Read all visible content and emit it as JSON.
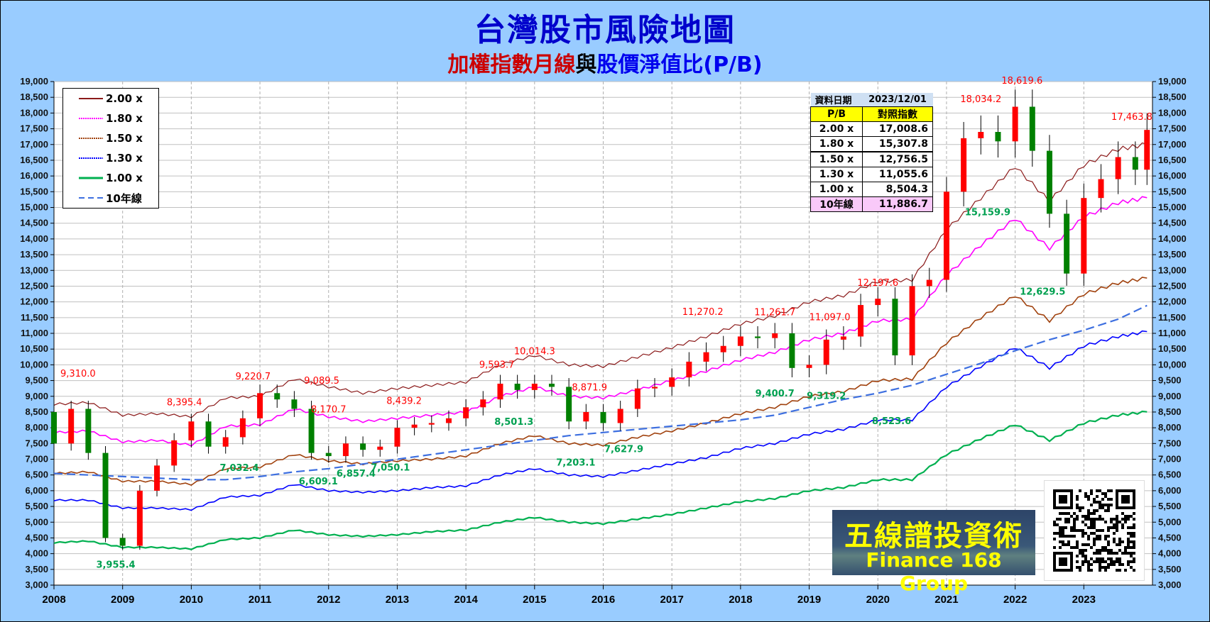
{
  "header": {
    "title": "台灣股市風險地圖",
    "subtitle_red": "加權指數月線",
    "subtitle_black": "與",
    "subtitle_blue": "股價淨值比(P/B)"
  },
  "legend": {
    "items": [
      {
        "label": "2.00 x",
        "color": "#8b1a1a",
        "style": "solid"
      },
      {
        "label": "1.80 x",
        "color": "#ff00ff",
        "style": "dotted"
      },
      {
        "label": "1.50 x",
        "color": "#a0410d",
        "style": "dotted"
      },
      {
        "label": "1.30 x",
        "color": "#0000ff",
        "style": "dotted"
      },
      {
        "label": "1.00 x",
        "color": "#00b050",
        "style": "solid"
      },
      {
        "label": "10年線",
        "color": "#3d6fe0",
        "style": "dashed"
      }
    ]
  },
  "info_table": {
    "date_label": "資料日期",
    "date_value": "2023/12/01",
    "col_pb": "P/B",
    "col_index": "對照指數",
    "rows": [
      {
        "pb": "2.00 x",
        "value": "17,008.6"
      },
      {
        "pb": "1.80 x",
        "value": "15,307.8"
      },
      {
        "pb": "1.50 x",
        "value": "12,756.5"
      },
      {
        "pb": "1.30 x",
        "value": "11,055.6"
      },
      {
        "pb": "1.00 x",
        "value": "8,504.3"
      },
      {
        "pb": "10年線",
        "value": "11,886.7"
      }
    ]
  },
  "brand": {
    "name_cn": "五線譜投資術",
    "name_en": "Finance 168 Group"
  },
  "chart_data": {
    "type": "line",
    "title": "台灣股市風險地圖",
    "subtitle": "加權指數月線與股價淨值比(P/B)",
    "xlabel": "",
    "ylabel": "",
    "ylim": [
      3000,
      19000
    ],
    "y_ticks": [
      3000,
      3500,
      4000,
      4500,
      5000,
      5500,
      6000,
      6500,
      7000,
      7500,
      8000,
      8500,
      9000,
      9500,
      10000,
      10500,
      11000,
      11500,
      12000,
      12500,
      13000,
      13500,
      14000,
      14500,
      15000,
      15500,
      16000,
      16500,
      17000,
      17500,
      18000,
      18500,
      19000
    ],
    "x_ticks": [
      "2008",
      "2009",
      "2010",
      "2011",
      "2012",
      "2013",
      "2014",
      "2015",
      "2016",
      "2017",
      "2018",
      "2019",
      "2020",
      "2021",
      "2022",
      "2023"
    ],
    "xlim": [
      2008,
      2024
    ],
    "grid": true,
    "legend_position": "top-left",
    "x": [
      2008.0,
      2008.5,
      2009.0,
      2009.5,
      2010.0,
      2010.5,
      2011.0,
      2011.5,
      2012.0,
      2012.5,
      2013.0,
      2013.5,
      2014.0,
      2014.5,
      2015.0,
      2015.5,
      2016.0,
      2016.5,
      2017.0,
      2017.5,
      2018.0,
      2018.5,
      2019.0,
      2019.5,
      2020.0,
      2020.5,
      2021.0,
      2021.5,
      2022.0,
      2022.5,
      2023.0,
      2023.5,
      2023.92
    ],
    "series": [
      {
        "name": "2.00 x",
        "color": "#8b1a1a",
        "values": [
          8750,
          8800,
          8400,
          8450,
          8350,
          8950,
          9000,
          9550,
          9300,
          9100,
          9250,
          9350,
          9450,
          10000,
          10300,
          10000,
          9950,
          10250,
          10550,
          10900,
          11300,
          11550,
          12000,
          12200,
          12650,
          12700,
          14300,
          15300,
          16300,
          15200,
          16350,
          16850,
          17008.6
        ]
      },
      {
        "name": "1.80 x",
        "color": "#ff00ff",
        "values": [
          7850,
          7900,
          7550,
          7600,
          7450,
          8050,
          8100,
          8600,
          8350,
          8200,
          8300,
          8400,
          8500,
          9000,
          9300,
          9000,
          8950,
          9200,
          9500,
          9800,
          10150,
          10400,
          10800,
          11000,
          11400,
          11450,
          12850,
          13800,
          14650,
          13700,
          14700,
          15150,
          15307.8
        ]
      },
      {
        "name": "1.50 x",
        "color": "#a0410d",
        "values": [
          6550,
          6600,
          6300,
          6300,
          6200,
          6700,
          6750,
          7150,
          6950,
          6850,
          6950,
          7000,
          7100,
          7500,
          7750,
          7500,
          7450,
          7700,
          7900,
          8150,
          8450,
          8650,
          9000,
          9150,
          9500,
          9550,
          10700,
          11500,
          12200,
          11400,
          12250,
          12600,
          12756.5
        ]
      },
      {
        "name": "1.30 x",
        "color": "#0000ff",
        "values": [
          5700,
          5700,
          5450,
          5450,
          5400,
          5800,
          5850,
          6200,
          6000,
          5950,
          6000,
          6100,
          6150,
          6500,
          6700,
          6500,
          6450,
          6650,
          6850,
          7050,
          7350,
          7500,
          7800,
          7950,
          8250,
          8250,
          9300,
          9950,
          10550,
          9900,
          10600,
          10900,
          11055.6
        ]
      },
      {
        "name": "1.00 x",
        "color": "#00b050",
        "values": [
          4350,
          4400,
          4200,
          4200,
          4150,
          4450,
          4500,
          4750,
          4600,
          4550,
          4600,
          4700,
          4750,
          5000,
          5150,
          5000,
          4950,
          5100,
          5250,
          5450,
          5650,
          5750,
          6000,
          6100,
          6350,
          6350,
          7150,
          7650,
          8100,
          7600,
          8150,
          8400,
          8504.3
        ]
      },
      {
        "name": "10年線",
        "color": "#3d6fe0",
        "values": [
          6550,
          6500,
          6450,
          6400,
          6350,
          6350,
          6450,
          6600,
          6700,
          6850,
          7000,
          7150,
          7300,
          7450,
          7600,
          7750,
          7850,
          7950,
          8050,
          8150,
          8250,
          8400,
          8650,
          8900,
          9100,
          9350,
          9700,
          10050,
          10450,
          10800,
          11100,
          11450,
          11886.7
        ]
      }
    ],
    "candles_monthly_close_approx": {
      "x": [
        2008.0,
        2008.25,
        2008.5,
        2008.75,
        2009.0,
        2009.25,
        2009.5,
        2009.75,
        2010.0,
        2010.25,
        2010.5,
        2010.75,
        2011.0,
        2011.25,
        2011.5,
        2011.75,
        2012.0,
        2012.25,
        2012.5,
        2012.75,
        2013.0,
        2013.25,
        2013.5,
        2013.75,
        2014.0,
        2014.25,
        2014.5,
        2014.75,
        2015.0,
        2015.25,
        2015.5,
        2015.75,
        2016.0,
        2016.25,
        2016.5,
        2016.75,
        2017.0,
        2017.25,
        2017.5,
        2017.75,
        2018.0,
        2018.25,
        2018.5,
        2018.75,
        2019.0,
        2019.25,
        2019.5,
        2019.75,
        2020.0,
        2020.25,
        2020.5,
        2020.75,
        2021.0,
        2021.25,
        2021.5,
        2021.75,
        2022.0,
        2022.25,
        2022.5,
        2022.75,
        2023.0,
        2023.25,
        2023.5,
        2023.75,
        2023.92
      ],
      "close": [
        7500,
        8600,
        7200,
        4500,
        4250,
        6000,
        6800,
        7600,
        8200,
        7400,
        7700,
        8300,
        9100,
        8900,
        8600,
        7200,
        7100,
        7500,
        7300,
        7400,
        8000,
        8100,
        8150,
        8300,
        8650,
        8900,
        9400,
        9200,
        9400,
        9300,
        8200,
        8500,
        8150,
        8600,
        9250,
        9300,
        9600,
        10100,
        10400,
        10600,
        10900,
        10850,
        11000,
        9900,
        10000,
        10800,
        10900,
        11900,
        12100,
        10300,
        12500,
        12700,
        15500,
        17200,
        17400,
        17100,
        18200,
        16800,
        14800,
        12900,
        15300,
        15900,
        16600,
        16200,
        17463.8
      ]
    },
    "annotations": [
      {
        "text": "9,310.0",
        "x": 2008.35,
        "y": 9310.0,
        "type": "high"
      },
      {
        "text": "3,955.4",
        "x": 2008.9,
        "y": 3955.4,
        "type": "low"
      },
      {
        "text": "8,395.4",
        "x": 2009.9,
        "y": 8395.4,
        "type": "high"
      },
      {
        "text": "7,032.4",
        "x": 2010.7,
        "y": 7032.4,
        "type": "low"
      },
      {
        "text": "9,220.7",
        "x": 2010.9,
        "y": 9220.7,
        "type": "high"
      },
      {
        "text": "9,089.5",
        "x": 2011.9,
        "y": 9089.5,
        "type": "high"
      },
      {
        "text": "6,609.1",
        "x": 2011.85,
        "y": 6609.1,
        "type": "low"
      },
      {
        "text": "8,170.7",
        "x": 2012.0,
        "y": 8170.7,
        "type": "high"
      },
      {
        "text": "6,857.4",
        "x": 2012.4,
        "y": 6857.4,
        "type": "low"
      },
      {
        "text": "7,050.1",
        "x": 2012.9,
        "y": 7050.1,
        "type": "low"
      },
      {
        "text": "8,439.2",
        "x": 2013.1,
        "y": 8439.2,
        "type": "high"
      },
      {
        "text": "9,593.7",
        "x": 2014.45,
        "y": 9593.7,
        "type": "high"
      },
      {
        "text": "8,501.3",
        "x": 2014.7,
        "y": 8501.3,
        "type": "low"
      },
      {
        "text": "10,014.3",
        "x": 2015.0,
        "y": 10014.3,
        "type": "high"
      },
      {
        "text": "8,871.9",
        "x": 2015.8,
        "y": 8871.9,
        "type": "high"
      },
      {
        "text": "7,203.1",
        "x": 2015.6,
        "y": 7203.1,
        "type": "low"
      },
      {
        "text": "7,627.9",
        "x": 2016.3,
        "y": 7627.9,
        "type": "low"
      },
      {
        "text": "11,270.2",
        "x": 2017.45,
        "y": 11270.2,
        "type": "high"
      },
      {
        "text": "11,261.7",
        "x": 2018.5,
        "y": 11261.7,
        "type": "high"
      },
      {
        "text": "9,400.7",
        "x": 2018.5,
        "y": 9400.7,
        "type": "low"
      },
      {
        "text": "9,319.2",
        "x": 2019.25,
        "y": 9319.2,
        "type": "low"
      },
      {
        "text": "11,097.0",
        "x": 2019.3,
        "y": 11097.0,
        "type": "high"
      },
      {
        "text": "12,197.6",
        "x": 2020.0,
        "y": 12197.6,
        "type": "high"
      },
      {
        "text": "8,523.6",
        "x": 2020.2,
        "y": 8523.6,
        "type": "low"
      },
      {
        "text": "18,034.2",
        "x": 2021.5,
        "y": 18034.2,
        "type": "high"
      },
      {
        "text": "15,159.9",
        "x": 2021.6,
        "y": 15159.9,
        "type": "low"
      },
      {
        "text": "18,619.6",
        "x": 2022.1,
        "y": 18619.6,
        "type": "high"
      },
      {
        "text": "12,629.5",
        "x": 2022.4,
        "y": 12629.5,
        "type": "low"
      },
      {
        "text": "17,463.8",
        "x": 2023.7,
        "y": 17463.8,
        "type": "high"
      }
    ]
  }
}
